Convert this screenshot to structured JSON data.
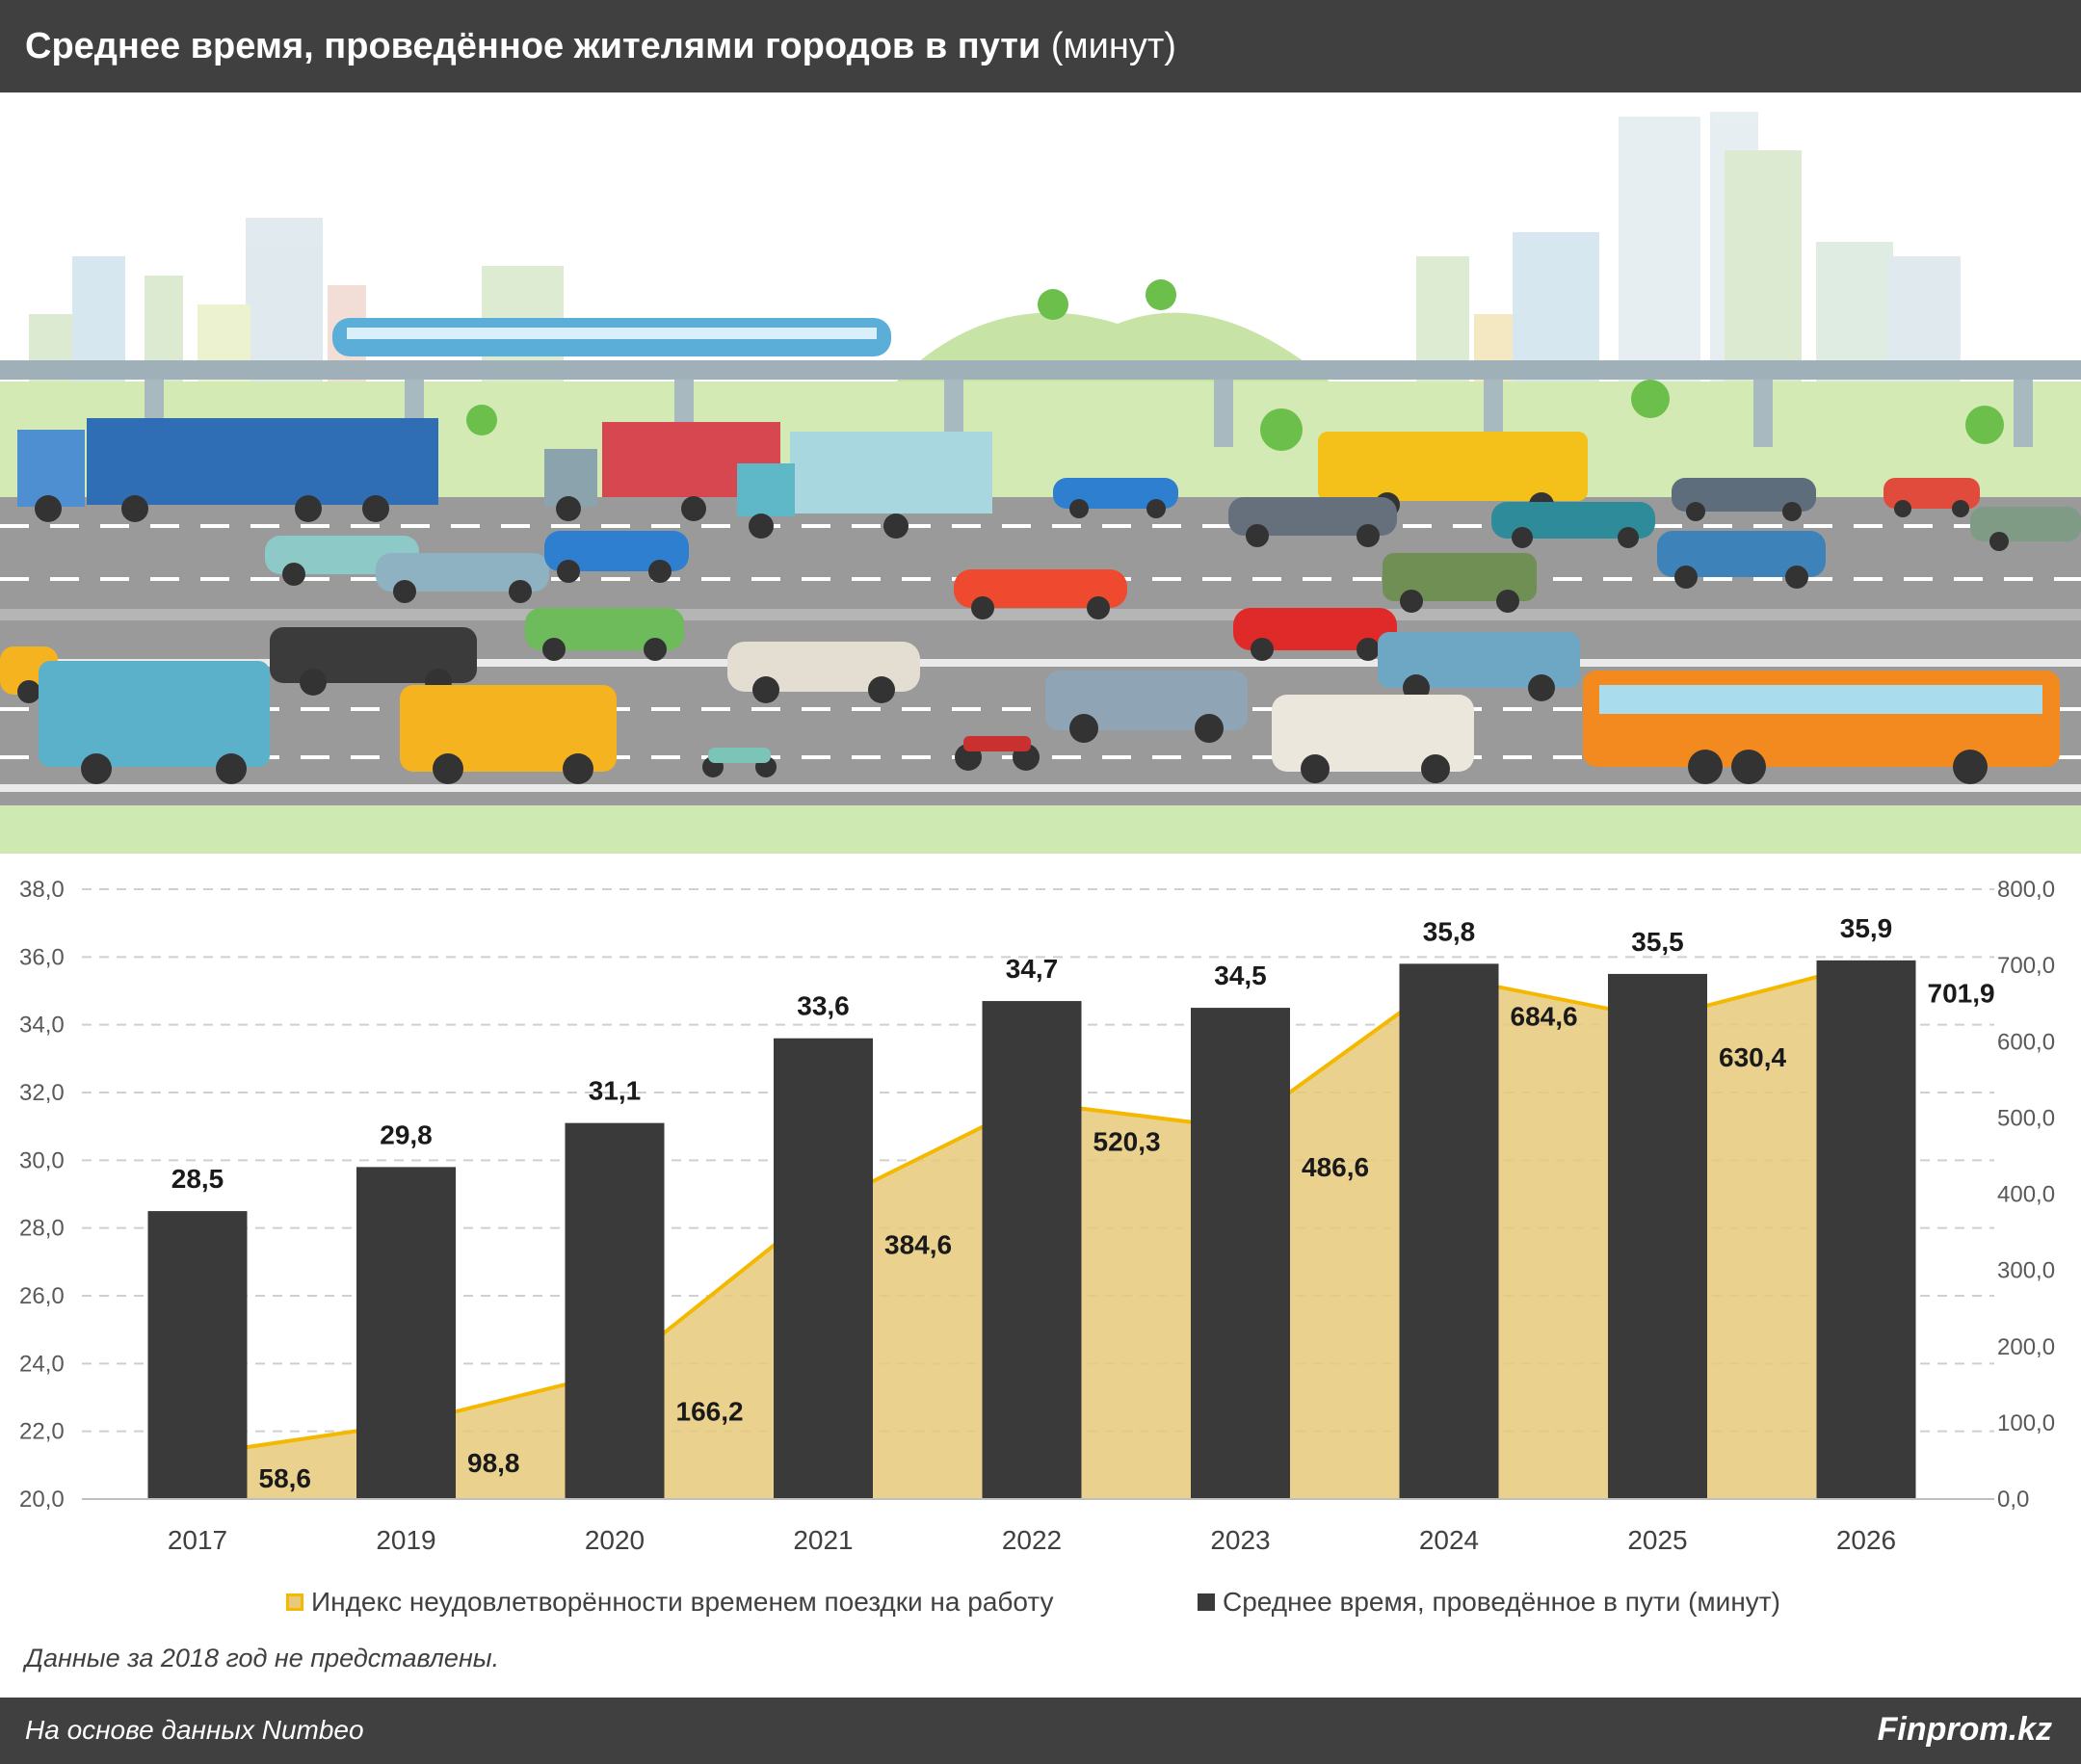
{
  "header": {
    "title_bold": "Среднее время, проведённое жителями городов в пути",
    "title_unit": "(минут)"
  },
  "colors": {
    "bar": "#3a3a3a",
    "area_fill": "#e6c97a",
    "area_line": "#f5b800",
    "header_bg": "#404040",
    "grid": "#cfcfcf"
  },
  "illustration": {
    "description_icon": "city-traffic-illustration"
  },
  "chart_data": {
    "type": "bar",
    "categories": [
      "2017",
      "2019",
      "2020",
      "2021",
      "2022",
      "2023",
      "2024",
      "2025",
      "2026"
    ],
    "series": [
      {
        "name": "Среднее время, проведённое в пути (минут)",
        "type": "bar",
        "axis": "left",
        "values": [
          28.5,
          29.8,
          31.1,
          33.6,
          34.7,
          34.5,
          35.8,
          35.5,
          35.9
        ],
        "labels": [
          "28,5",
          "29,8",
          "31,1",
          "33,6",
          "34,7",
          "34,5",
          "35,8",
          "35,5",
          "35,9"
        ]
      },
      {
        "name": "Индекс неудовлетворённости временем поездки на работу",
        "type": "area",
        "axis": "right",
        "values": [
          58.6,
          98.8,
          166.2,
          384.6,
          520.3,
          486.6,
          684.6,
          630.4,
          701.9
        ],
        "labels": [
          "58,6",
          "98,8",
          "166,2",
          "384,6",
          "520,3",
          "486,6",
          "684,6",
          "630,4",
          "701,9"
        ]
      }
    ],
    "y_left": {
      "min": 20,
      "max": 38,
      "ticks": [
        "20,0",
        "22,0",
        "24,0",
        "26,0",
        "28,0",
        "30,0",
        "32,0",
        "34,0",
        "36,0",
        "38,0"
      ]
    },
    "y_right": {
      "min": 0,
      "max": 800,
      "ticks": [
        "0,0",
        "100,0",
        "200,0",
        "300,0",
        "400,0",
        "500,0",
        "600,0",
        "700,0",
        "800,0"
      ]
    },
    "grid": true,
    "legend_position": "bottom"
  },
  "legend": {
    "area_label": "Индекс неудовлетворённости временем поездки на работу",
    "bar_label": "Среднее время, проведённое в пути (минут)"
  },
  "note": "Данные за 2018 год не представлены.",
  "footer": {
    "source": "На основе данных Numbeo",
    "brand": "Finprom.kz"
  }
}
